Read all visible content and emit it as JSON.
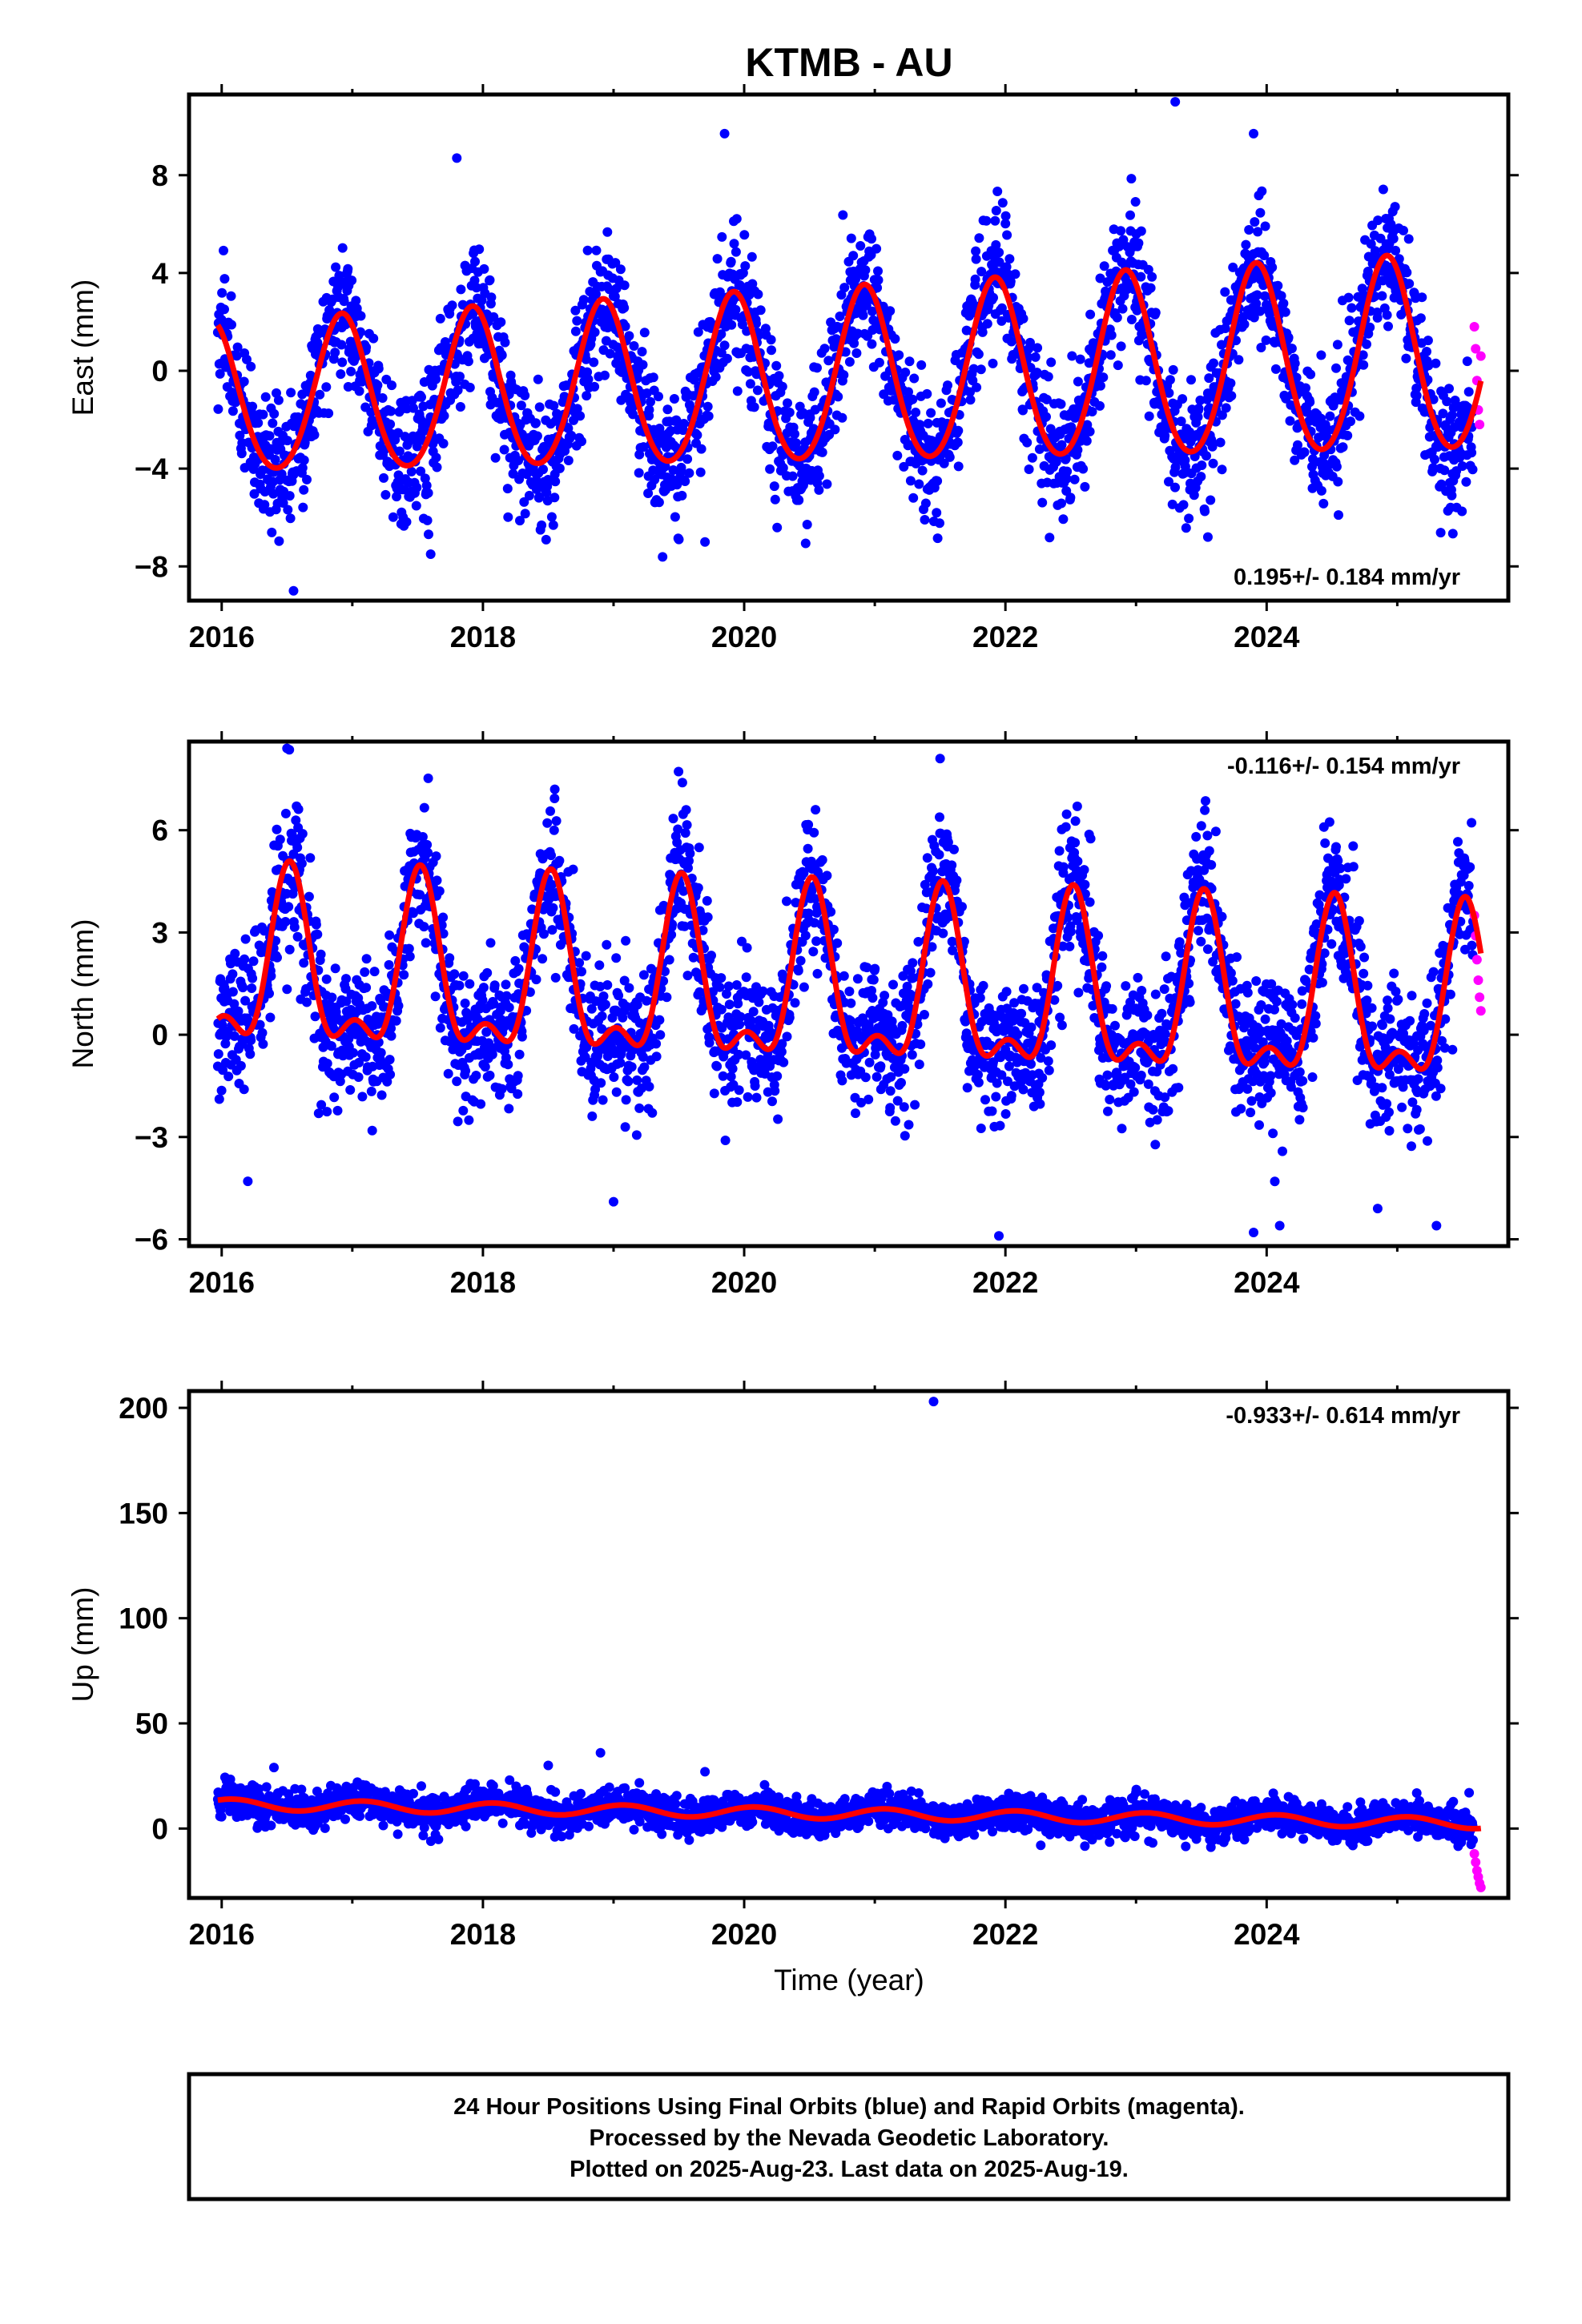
{
  "title": "KTMB - AU",
  "colors": {
    "final_orbits": "#0000ff",
    "rapid_orbits": "#ff00ff",
    "model": "#ff0000",
    "frame": "#000000"
  },
  "chart_data": [
    {
      "type": "scatter",
      "name": "east",
      "ylabel": "East (mm)",
      "xlabel": "",
      "xlim": [
        2015.75,
        2025.85
      ],
      "ylim": [
        -9.4,
        11.3
      ],
      "x_ticks": [
        2016,
        2018,
        2020,
        2022,
        2024
      ],
      "x_tick_labels": [
        "2016",
        "2018",
        "2020",
        "2022",
        "2024"
      ],
      "y_ticks": [
        -8,
        -4,
        0,
        4,
        8
      ],
      "y_tick_labels": [
        "−8",
        "−4",
        "0",
        "4",
        "8"
      ],
      "rate_label": "0.195+/- 0.184 mm/yr",
      "rate_position": "bottom-right",
      "series": [
        {
          "name": "",
          "role": "final",
          "color": "#0000ff",
          "model": {
            "offset": -0.33,
            "trend": 0.195,
            "annual_amp": 3.05,
            "annual_amp_growth": 0.1,
            "peak_phase": 0.92,
            "semiannual_amp": 0.3,
            "spread": 1.35
          },
          "start": 2015.97,
          "end": 2025.58,
          "count": 3300
        },
        {
          "name": "",
          "role": "rapid",
          "color": "#ff00ff",
          "x": [
            2025.59,
            2025.6,
            2025.61,
            2025.62,
            2025.63,
            2025.64
          ],
          "y": [
            1.8,
            0.9,
            -0.4,
            -1.6,
            -2.2,
            0.6
          ]
        },
        {
          "name": "",
          "role": "model",
          "color": "#ff0000",
          "model": {
            "offset": -0.33,
            "trend": 0.195,
            "annual_amp": 3.05,
            "annual_amp_growth": 0.1,
            "peak_phase": 0.92,
            "semiannual_amp": 0.3
          },
          "start": 2015.97,
          "end": 2025.64
        }
      ],
      "outliers": {
        "x": [
          2016.55,
          2017.6,
          2017.8,
          2019.5,
          2019.7,
          2019.85,
          2022.4,
          2023.3,
          2023.55,
          2023.9,
          2024.55
        ],
        "y": [
          -9.0,
          -7.5,
          8.7,
          -6.9,
          -7.0,
          9.7,
          -5.5,
          11.0,
          -6.8,
          9.7,
          -5.9
        ]
      }
    },
    {
      "type": "scatter",
      "name": "north",
      "ylabel": "North (mm)",
      "xlabel": "",
      "xlim": [
        2015.75,
        2025.85
      ],
      "ylim": [
        -6.2,
        8.6
      ],
      "x_ticks": [
        2016,
        2018,
        2020,
        2022,
        2024
      ],
      "x_tick_labels": [
        "2016",
        "2018",
        "2020",
        "2022",
        "2024"
      ],
      "y_ticks": [
        -6,
        -3,
        0,
        3,
        6
      ],
      "y_tick_labels": [
        "−6",
        "−3",
        "0",
        "3",
        "6"
      ],
      "rate_label": "-0.116+/- 0.154 mm/yr",
      "rate_position": "top-right",
      "series": [
        {
          "name": "",
          "role": "final",
          "color": "#0000ff",
          "model": {
            "offset": 1.2,
            "trend": -0.116,
            "annual_amp": 2.3,
            "annual_amp_growth": 0.0,
            "peak_phase": 0.52,
            "semiannual_amp": 1.1,
            "spread": 1.05
          },
          "start": 2015.97,
          "end": 2025.58,
          "count": 3300
        },
        {
          "name": "",
          "role": "rapid",
          "color": "#ff00ff",
          "x": [
            2025.59,
            2025.6,
            2025.61,
            2025.62,
            2025.63,
            2025.64
          ],
          "y": [
            3.5,
            2.9,
            2.2,
            1.6,
            1.1,
            0.7
          ]
        },
        {
          "name": "",
          "role": "model",
          "color": "#ff0000",
          "model": {
            "offset": 1.2,
            "trend": -0.116,
            "annual_amp": 2.3,
            "annual_amp_growth": 0.0,
            "peak_phase": 0.52,
            "semiannual_amp": 1.1
          },
          "start": 2015.97,
          "end": 2025.64
        }
      ],
      "outliers": {
        "x": [
          2016.5,
          2016.2,
          2018.55,
          2019.0,
          2021.5,
          2021.95,
          2022.55,
          2023.9,
          2024.1,
          2024.85,
          2025.3
        ],
        "y": [
          8.4,
          -4.3,
          7.2,
          -4.9,
          8.1,
          -5.9,
          6.7,
          -5.8,
          -5.6,
          -5.1,
          -5.6
        ]
      }
    },
    {
      "type": "scatter",
      "name": "up",
      "ylabel": "Up (mm)",
      "xlabel": "Time (year)",
      "xlim": [
        2015.75,
        2025.85
      ],
      "ylim": [
        -33,
        208
      ],
      "x_ticks": [
        2016,
        2018,
        2020,
        2022,
        2024
      ],
      "x_tick_labels": [
        "2016",
        "2018",
        "2020",
        "2022",
        "2024"
      ],
      "y_ticks": [
        0,
        50,
        100,
        150,
        200
      ],
      "y_tick_labels": [
        "0",
        "50",
        "100",
        "150",
        "200"
      ],
      "rate_label": "-0.933+/- 0.614 mm/yr",
      "rate_position": "top-right",
      "series": [
        {
          "name": "",
          "role": "final",
          "color": "#0000ff",
          "model": {
            "offset": 7.0,
            "trend": -0.933,
            "annual_amp": 2.6,
            "annual_amp_growth": 0.0,
            "peak_phase": 0.08,
            "semiannual_amp": 0.0,
            "spread": 4.2
          },
          "start": 2015.97,
          "end": 2025.58,
          "count": 3300
        },
        {
          "name": "",
          "role": "rapid",
          "color": "#ff00ff",
          "x": [
            2025.59,
            2025.6,
            2025.61,
            2025.62,
            2025.63,
            2025.64
          ],
          "y": [
            -12,
            -16,
            -20,
            -23,
            -26,
            -28
          ]
        },
        {
          "name": "",
          "role": "model",
          "color": "#ff0000",
          "model": {
            "offset": 7.0,
            "trend": -0.933,
            "annual_amp": 2.6,
            "annual_amp_growth": 0.0,
            "peak_phase": 0.08,
            "semiannual_amp": 0.0
          },
          "start": 2015.97,
          "end": 2025.64
        }
      ],
      "outliers": {
        "x": [
          2016.4,
          2018.5,
          2018.9,
          2019.7,
          2021.45,
          2025.55
        ],
        "y": [
          29,
          30,
          36,
          27,
          203,
          17
        ]
      }
    }
  ],
  "footer": {
    "line1": "24 Hour Positions Using Final Orbits (blue) and Rapid Orbits (magenta).",
    "line2": "Processed by the Nevada Geodetic Laboratory.",
    "line3": "Plotted on 2025-Aug-23. Last data on 2025-Aug-19."
  }
}
